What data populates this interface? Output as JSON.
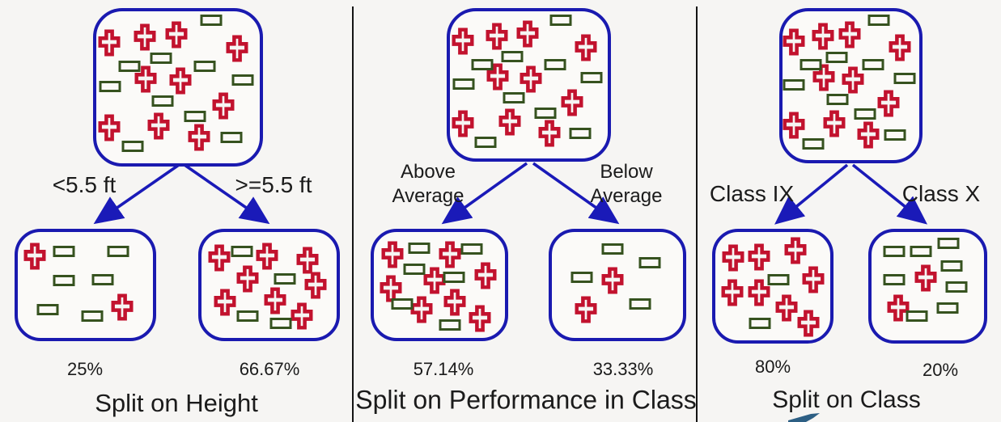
{
  "colors": {
    "box_border_blue": "#1a1ab0",
    "arrow_blue": "#1a1ab8",
    "plus_red": "#c2122e",
    "rect_green": "#36521f",
    "divider_black": "#141414",
    "text_black": "#1b1b1b",
    "background": "#f6f5f3",
    "decoration_teal": "#2d5f84"
  },
  "root_symbols": [
    [
      "p",
      8,
      20.5
    ],
    [
      "p",
      29.5,
      17
    ],
    [
      "p",
      49,
      15.5
    ],
    [
      "p",
      86,
      24.5
    ],
    [
      "p",
      30,
      44.5
    ],
    [
      "p",
      51.5,
      46
    ],
    [
      "p",
      77.5,
      62
    ],
    [
      "p",
      8,
      76.5
    ],
    [
      "p",
      38,
      75.5
    ],
    [
      "p",
      63,
      83
    ],
    [
      "r",
      70.5,
      6
    ],
    [
      "r",
      20.5,
      36
    ],
    [
      "r",
      39.5,
      31
    ],
    [
      "r",
      66.5,
      36
    ],
    [
      "r",
      8.5,
      49.5
    ],
    [
      "r",
      89.5,
      45
    ],
    [
      "r",
      40.5,
      59
    ],
    [
      "r",
      60.5,
      69
    ],
    [
      "r",
      22.5,
      89
    ],
    [
      "r",
      82.5,
      83
    ]
  ],
  "sections": [
    {
      "caption": "Split on Height",
      "left_label": "<5.5 ft",
      "right_label": ">=5.5 ft",
      "left_pct": "25%",
      "right_pct": "66.67%",
      "left_symbols": [
        [
          "p",
          12.6,
          23
        ],
        [
          "p",
          77,
          71
        ],
        [
          "r",
          34.3,
          18
        ],
        [
          "r",
          74.3,
          18
        ],
        [
          "r",
          34.3,
          46
        ],
        [
          "r",
          62.9,
          45.3
        ],
        [
          "r",
          22.3,
          73.4
        ],
        [
          "r",
          54.9,
          79.1
        ]
      ],
      "right_symbols": [
        [
          "p",
          13.1,
          24.5
        ],
        [
          "p",
          48.6,
          23
        ],
        [
          "p",
          78.3,
          26.6
        ],
        [
          "p",
          34.3,
          44.6
        ],
        [
          "p",
          84.6,
          50.4
        ],
        [
          "p",
          17.1,
          66.2
        ],
        [
          "p",
          54.3,
          64.7
        ],
        [
          "p",
          74.3,
          79.1
        ],
        [
          "r",
          29.7,
          18
        ],
        [
          "r",
          61.7,
          44.6
        ],
        [
          "r",
          34.3,
          79.1
        ],
        [
          "r",
          58.9,
          86.3
        ]
      ]
    },
    {
      "caption": "Split on Performance in Class",
      "left_label": "Above Average",
      "right_label": "Below Average",
      "left_pct": "57.14%",
      "right_pct": "33.33%",
      "left_symbols": [
        [
          "p",
          14.1,
          21.6
        ],
        [
          "p",
          58.2,
          21.6
        ],
        [
          "p",
          85.3,
          41
        ],
        [
          "p",
          12.9,
          53.2
        ],
        [
          "p",
          46.5,
          46
        ],
        [
          "p",
          36.5,
          73.4
        ],
        [
          "p",
          61.8,
          66.2
        ],
        [
          "p",
          80.6,
          82
        ],
        [
          "r",
          34.7,
          15.1
        ],
        [
          "r",
          74.7,
          15.8
        ],
        [
          "r",
          30.6,
          35.3
        ],
        [
          "r",
          61.2,
          42.4
        ],
        [
          "r",
          21.8,
          68.3
        ],
        [
          "r",
          58.2,
          87.8
        ]
      ],
      "right_symbols": [
        [
          "p",
          46.5,
          46
        ],
        [
          "p",
          25.9,
          73.4
        ],
        [
          "r",
          46.5,
          15.8
        ],
        [
          "r",
          74.7,
          28.8
        ],
        [
          "r",
          22.9,
          42.4
        ],
        [
          "r",
          67.1,
          68.3
        ]
      ]
    },
    {
      "caption": "Split on Class",
      "left_label": "Class IX",
      "right_label": "Class X",
      "left_pct": "80%",
      "right_pct": "20%",
      "left_symbols": [
        [
          "p",
          15.3,
          23.9
        ],
        [
          "p",
          38,
          23.2
        ],
        [
          "p",
          70,
          16.9
        ],
        [
          "p",
          85.3,
          43.7
        ],
        [
          "p",
          14.7,
          56.3
        ],
        [
          "p",
          38,
          56.3
        ],
        [
          "p",
          62,
          70.4
        ],
        [
          "p",
          81.3,
          84.5
        ],
        [
          "r",
          54.7,
          44.4
        ],
        [
          "r",
          38.7,
          84.5
        ]
      ],
      "right_symbols": [
        [
          "p",
          48.3,
          42.3
        ],
        [
          "p",
          23.8,
          70.4
        ],
        [
          "r",
          20.4,
          17.6
        ],
        [
          "r",
          44.2,
          17.6
        ],
        [
          "r",
          68,
          10.6
        ],
        [
          "r",
          71.4,
          31
        ],
        [
          "r",
          20.4,
          44.4
        ],
        [
          "r",
          75.5,
          50.7
        ],
        [
          "r",
          67.3,
          70.4
        ],
        [
          "r",
          40.1,
          77.5
        ]
      ]
    }
  ]
}
